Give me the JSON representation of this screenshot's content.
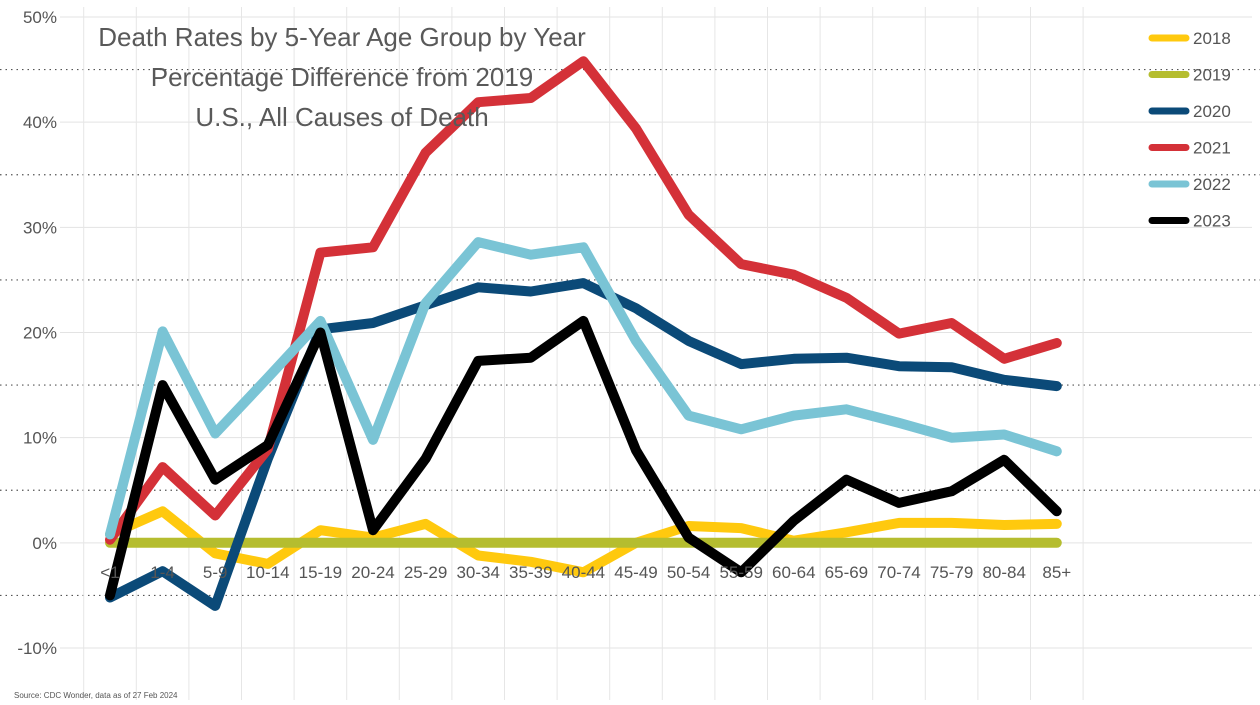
{
  "chart_data": {
    "type": "line",
    "title": [
      "Death Rates by 5-Year Age Group by Year",
      "Percentage Difference from 2019",
      "U.S., All Causes of Death"
    ],
    "source": "Source: CDC Wonder, data as of 27 Feb 2024",
    "categories": [
      "<1",
      "1-4",
      "5-9",
      "10-14",
      "15-19",
      "20-24",
      "25-29",
      "30-34",
      "35-39",
      "40-44",
      "45-49",
      "50-54",
      "55-59",
      "60-64",
      "65-69",
      "70-74",
      "75-79",
      "80-84",
      "85+"
    ],
    "ylim": [
      -10,
      50
    ],
    "yticks": [
      -10,
      0,
      10,
      20,
      30,
      40,
      50
    ],
    "ytick_labels": [
      "-10%",
      "0%",
      "10%",
      "20%",
      "30%",
      "40%",
      "50%"
    ],
    "grid": true,
    "legend_position": "top-right",
    "series": [
      {
        "name": "2018",
        "color": "#FFC90E",
        "values": [
          0.8,
          3.0,
          -1.0,
          -2.0,
          1.2,
          0.5,
          1.8,
          -1.2,
          -1.8,
          -2.8,
          0.0,
          1.6,
          1.4,
          0.2,
          1.0,
          1.9,
          1.9,
          1.7,
          1.8
        ]
      },
      {
        "name": "2019",
        "color": "#B5BD2F",
        "values": [
          0,
          0,
          0,
          0,
          0,
          0,
          0,
          0,
          0,
          0,
          0,
          0,
          0,
          0,
          0,
          0,
          0,
          0,
          0
        ]
      },
      {
        "name": "2020",
        "color": "#0B4A78",
        "values": [
          -5.2,
          -2.7,
          -6.0,
          8.0,
          20.3,
          20.9,
          22.6,
          24.3,
          23.9,
          24.7,
          22.3,
          19.2,
          17.0,
          17.5,
          17.6,
          16.8,
          16.7,
          15.5,
          14.9
        ]
      },
      {
        "name": "2021",
        "color": "#D43138",
        "values": [
          0.3,
          7.2,
          2.6,
          8.9,
          27.6,
          28.1,
          37.1,
          41.9,
          42.3,
          45.8,
          39.4,
          31.2,
          26.5,
          25.5,
          23.3,
          19.9,
          20.9,
          17.5,
          19.0
        ]
      },
      {
        "name": "2022",
        "color": "#7AC4D5",
        "values": [
          0.8,
          20.1,
          10.4,
          15.7,
          21.1,
          9.8,
          22.8,
          28.6,
          27.4,
          28.1,
          19.2,
          12.1,
          10.8,
          12.1,
          12.7,
          11.4,
          10.0,
          10.3,
          8.7
        ]
      },
      {
        "name": "2023",
        "color": "#000000",
        "values": [
          -5.0,
          15.0,
          6.0,
          9.3,
          20.0,
          1.2,
          8.0,
          17.3,
          17.6,
          21.1,
          8.8,
          0.5,
          -2.8,
          2.1,
          6.0,
          3.8,
          4.9,
          7.9,
          3.0
        ]
      }
    ]
  }
}
